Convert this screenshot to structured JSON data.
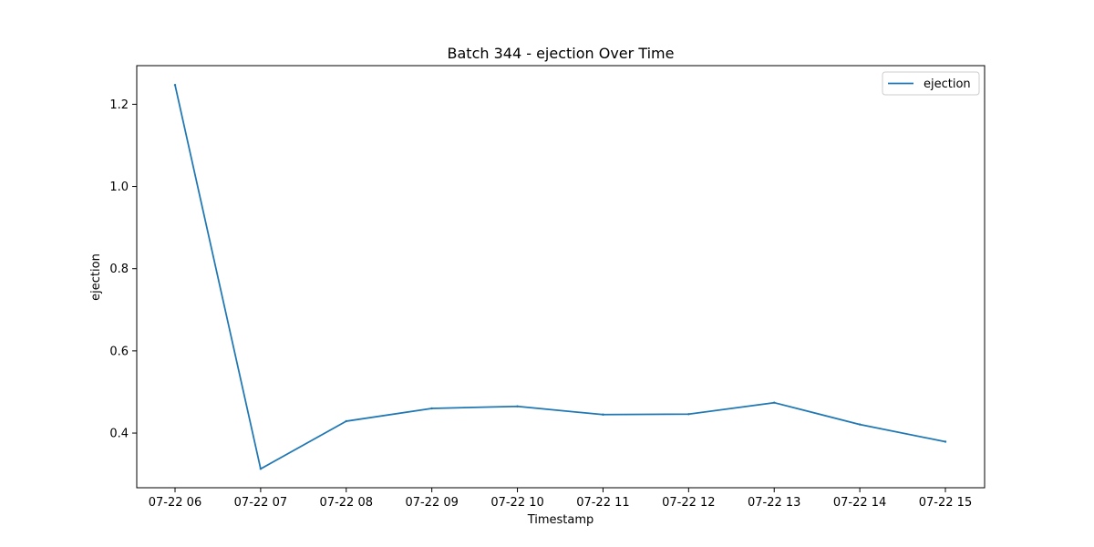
{
  "chart_data": {
    "type": "line",
    "title": "Batch 344 - ejection Over Time",
    "xlabel": "Timestamp",
    "ylabel": "ejection",
    "x": [
      "07-22 06",
      "07-22 07",
      "07-22 08",
      "07-22 09",
      "07-22 10",
      "07-22 11",
      "07-22 12",
      "07-22 13",
      "07-22 14",
      "07-22 15"
    ],
    "series": [
      {
        "name": "ejection",
        "color": "#1f77b4",
        "values": [
          1.247,
          0.313,
          0.429,
          0.46,
          0.465,
          0.445,
          0.446,
          0.474,
          0.421,
          0.379
        ]
      }
    ],
    "yticks": [
      0.4,
      0.6,
      0.8,
      1.0,
      1.2
    ],
    "ytick_labels": [
      "0.4",
      "0.6",
      "0.8",
      "1.0",
      "1.2"
    ],
    "ylim": [
      0.267,
      1.294
    ],
    "grid": false,
    "legend_position": "top-right"
  }
}
